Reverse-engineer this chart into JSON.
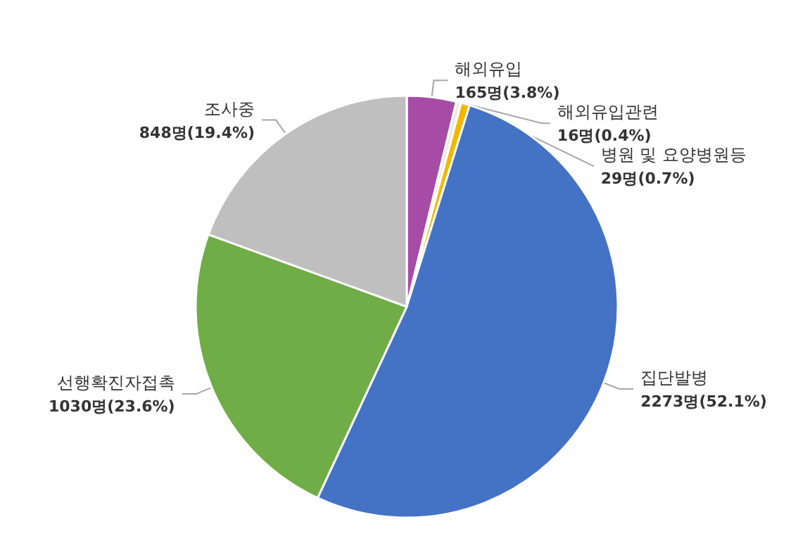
{
  "chart_data": {
    "type": "pie",
    "categories": [
      "해외유입",
      "해외유입관련",
      "병원 및 요양병원등",
      "집단발병",
      "선행확진자접촉",
      "조사중"
    ],
    "values": [
      165,
      16,
      29,
      2273,
      1030,
      848
    ],
    "colors": [
      "#a64ca6",
      "#ece9e0",
      "#f2b800",
      "#4472c4",
      "#70ad47",
      "#bfbfbf"
    ],
    "value_labels": [
      "165명(3.8%)",
      "16명(0.4%)",
      "29명(0.7%)",
      "2273명(52.1%)",
      "1030명(23.6%)",
      "848명(19.4%)"
    ],
    "legend": false
  }
}
